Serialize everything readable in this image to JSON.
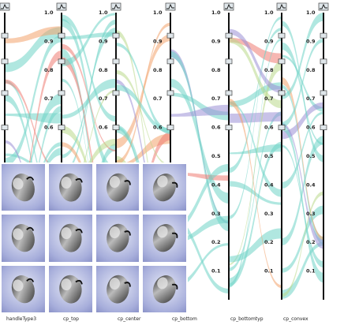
{
  "chart_data": {
    "type": "parallel_coordinates",
    "axes": [
      {
        "label": "handleType3",
        "ticks": []
      },
      {
        "label": "cp_top",
        "ticks": [
          "1.0",
          "0.9",
          "0.8",
          "0.7",
          "0.6"
        ]
      },
      {
        "label": "cp_center",
        "ticks": [
          "1.0",
          "0.9",
          "0.8",
          "0.7",
          "0.6"
        ]
      },
      {
        "label": "cp_bottom",
        "ticks": [
          "1.0",
          "0.9",
          "0.8",
          "0.7",
          "0.6"
        ]
      },
      {
        "label": "cp_bottomtyp",
        "ticks": [
          "1.0",
          "0.9",
          "0.8",
          "0.7",
          "0.6",
          "0.5",
          "0.4",
          "0.3",
          "0.2",
          "0.1"
        ]
      },
      {
        "label": "cp_convex",
        "ticks": [
          "1.0",
          "0.9",
          "0.8",
          "0.7",
          "0.6",
          "0.5",
          "0.4",
          "0.3",
          "0.2",
          "0.1"
        ]
      },
      {
        "label": "",
        "ticks": [
          "1.0",
          "0.9",
          "0.8",
          "0.7",
          "0.6",
          "0.5",
          "0.4",
          "0.3",
          "0.2",
          "0.1"
        ]
      }
    ],
    "ylim": [
      0,
      1
    ],
    "colors": {
      "teal": "#6fd3c6",
      "purple": "#9b8fd6",
      "orange": "#f2a26b",
      "red": "#ef7b73",
      "green": "#b9d98a"
    },
    "preview_grid": {
      "rows": 3,
      "cols": 4
    }
  }
}
